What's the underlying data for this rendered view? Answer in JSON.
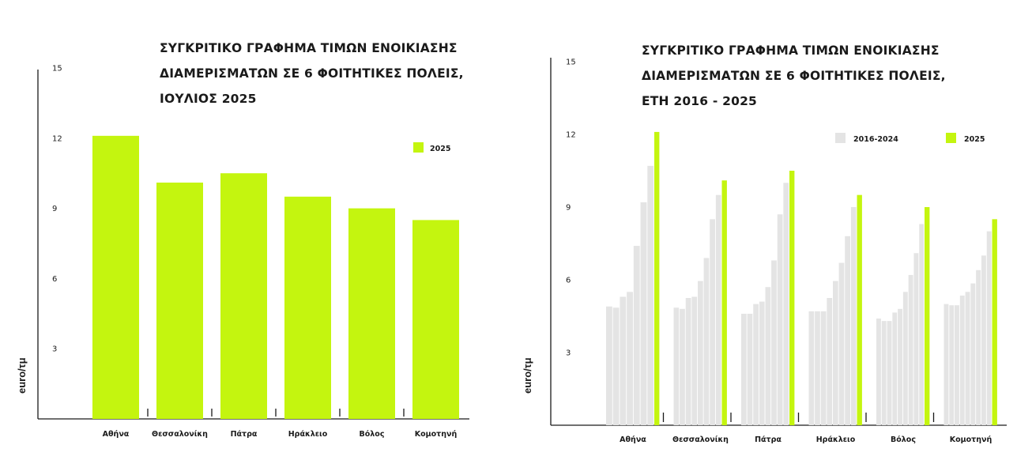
{
  "colors": {
    "current": "#c4f50f",
    "history": "#e4e4e4",
    "axis": "#1a1a1a"
  },
  "chart_data": [
    {
      "type": "bar",
      "title_lines": [
        "ΣΥΓΚΡΙΤΙΚΟ ΓΡΑΦΗΜΑ ΤΙΜΩΝ ΕΝΟΙΚΙΑΣΗΣ",
        "ΔΙΑΜΕΡΙΣΜΑΤΩΝ ΣΕ  6 ΦΟΙΤΗΤΙΚΕΣ ΠΟΛΕΙΣ,",
        "ΙΟΥΛΙΟΣ 2025"
      ],
      "ylabel": "euro/τμ",
      "ylim": [
        0,
        15
      ],
      "yticks": [
        3,
        6,
        9,
        12,
        15
      ],
      "categories": [
        "Αθήνα",
        "Θεσσαλονίκη",
        "Πάτρα",
        "Ηράκλειο",
        "Βόλος",
        "Κομοτηνή"
      ],
      "series": [
        {
          "name": "2025",
          "values": [
            12.1,
            10.1,
            10.5,
            9.5,
            9.0,
            8.5
          ]
        }
      ],
      "legend": "top-right",
      "grid": false
    },
    {
      "type": "bar",
      "title_lines": [
        "ΣΥΓΚΡΙΤΙΚΟ ΓΡΑΦΗΜΑ ΤΙΜΩΝ ΕΝΟΙΚΙΑΣΗΣ",
        "ΔΙΑΜΕΡΙΣΜΑΤΩΝ ΣΕ   6 ΦΟΙΤΗΤΙΚΕΣ ΠΟΛΕΙΣ,",
        "ΕΤΗ 2016 - 2025"
      ],
      "ylabel": "euro/τμ",
      "ylim": [
        0,
        15
      ],
      "yticks": [
        3,
        6,
        9,
        12,
        15
      ],
      "categories": [
        "Αθήνα",
        "Θεσσαλονίκη",
        "Πάτρα",
        "Ηράκλειο",
        "Βόλος",
        "Κομοτηνή"
      ],
      "series": [
        {
          "name": "2016-2024",
          "values": [
            [
              4.9,
              4.85,
              5.3,
              5.5,
              7.4,
              9.2,
              10.7
            ],
            [
              4.85,
              4.8,
              5.25,
              5.3,
              5.95,
              6.9,
              8.5,
              9.5
            ],
            [
              4.6,
              4.6,
              5.0,
              5.1,
              5.7,
              6.8,
              8.7,
              10.0
            ],
            [
              4.7,
              4.7,
              4.7,
              5.25,
              5.95,
              6.7,
              7.8,
              9.0
            ],
            [
              4.4,
              4.3,
              4.3,
              4.65,
              4.8,
              5.5,
              6.2,
              7.1,
              8.3
            ],
            [
              5.0,
              4.95,
              4.95,
              5.35,
              5.5,
              5.85,
              6.4,
              7.0,
              8.0
            ]
          ]
        },
        {
          "name": "2025",
          "values": [
            12.1,
            10.1,
            10.5,
            9.5,
            9.0,
            8.5
          ]
        }
      ],
      "legend": "top-right",
      "grid": false
    }
  ]
}
